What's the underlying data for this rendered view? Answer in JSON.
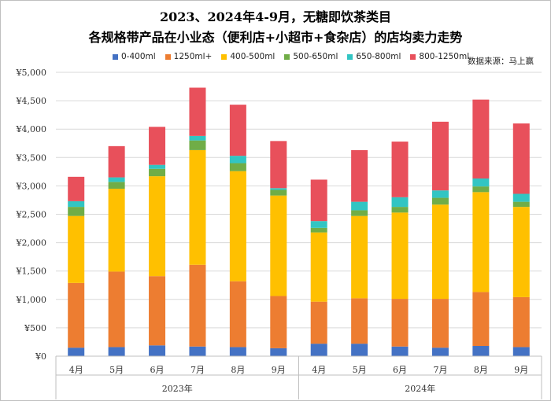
{
  "title_line1": "2023、2024年4-9月，无糖即饮茶类目",
  "title_line2": "各规格带产品在小业态（便利店+小超市+食杂店）的店均卖力走势",
  "source_label": "数据来源：马上赢",
  "chart_data": {
    "type": "bar",
    "stacked": true,
    "ylim": [
      0,
      5000
    ],
    "yticks": [
      0,
      500,
      1000,
      1500,
      2000,
      2500,
      3000,
      3500,
      4000,
      4500,
      5000
    ],
    "ytick_labels": [
      "¥0",
      "¥500",
      "¥1,000",
      "¥1,500",
      "¥2,000",
      "¥2,500",
      "¥3,000",
      "¥3,500",
      "¥4,000",
      "¥4,500",
      "¥5,000"
    ],
    "categories": [
      "4月",
      "5月",
      "6月",
      "7月",
      "8月",
      "9月",
      "4月",
      "5月",
      "6月",
      "7月",
      "8月",
      "9月"
    ],
    "groups": [
      {
        "label": "2023年",
        "start": 0,
        "end": 5
      },
      {
        "label": "2024年",
        "start": 6,
        "end": 11
      }
    ],
    "series": [
      {
        "name": "0-400ml",
        "color": "#4472c4",
        "values": [
          150,
          160,
          190,
          170,
          160,
          140,
          220,
          220,
          170,
          150,
          180,
          160
        ]
      },
      {
        "name": "1250ml+",
        "color": "#ed7d31",
        "values": [
          1140,
          1330,
          1220,
          1440,
          1160,
          920,
          740,
          800,
          840,
          860,
          950,
          880
        ]
      },
      {
        "name": "400-500ml",
        "color": "#ffc000",
        "values": [
          1180,
          1460,
          1760,
          2020,
          1940,
          1770,
          1220,
          1450,
          1520,
          1660,
          1760,
          1590
        ]
      },
      {
        "name": "500-650ml",
        "color": "#70ad47",
        "values": [
          160,
          120,
          130,
          170,
          140,
          100,
          80,
          100,
          100,
          120,
          100,
          90
        ]
      },
      {
        "name": "650-800ml",
        "color": "#32c5c3",
        "values": [
          100,
          80,
          70,
          80,
          130,
          30,
          120,
          150,
          170,
          130,
          140,
          140
        ]
      },
      {
        "name": "800-1250ml",
        "color": "#e8505b",
        "values": [
          430,
          550,
          670,
          850,
          900,
          830,
          730,
          910,
          980,
          1210,
          1390,
          1240
        ]
      }
    ]
  }
}
